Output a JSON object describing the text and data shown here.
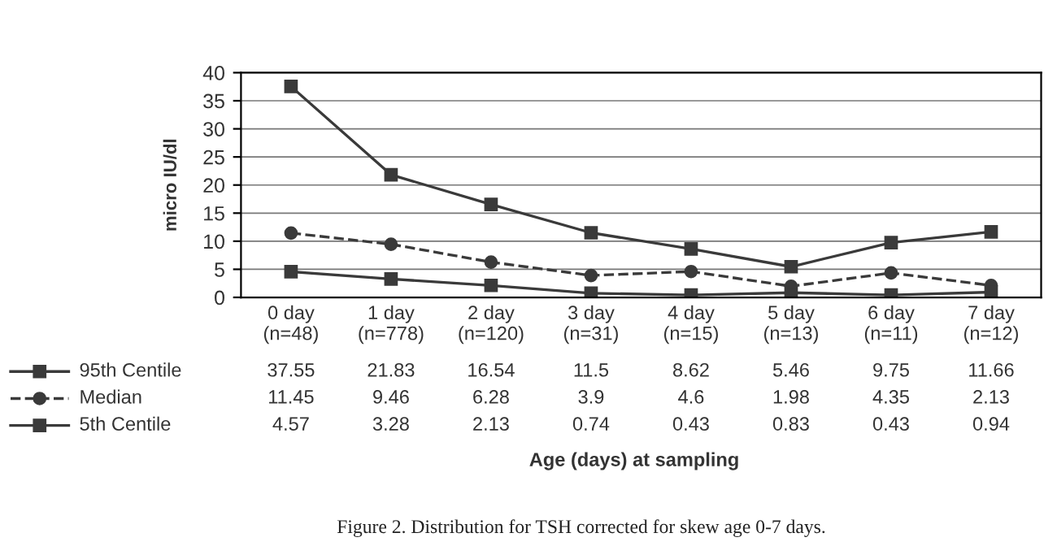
{
  "chart_data": {
    "type": "line",
    "categories": [
      "0 day\n(n=48)",
      "1 day\n(n=778)",
      "2 day\n(n=120)",
      "3 day\n(n=31)",
      "4 day\n(n=15)",
      "5 day\n(n=13)",
      "6 day\n(n=11)",
      "7 day\n(n=12)"
    ],
    "series": [
      {
        "name": "95th Centile",
        "color": "#3a3a3a",
        "marker": "square",
        "line_style": "solid",
        "values": [
          37.55,
          21.83,
          16.54,
          11.5,
          8.62,
          5.46,
          9.75,
          11.66
        ]
      },
      {
        "name": "Median",
        "color": "#3a3a3a",
        "marker": "circle",
        "line_style": "dashed",
        "values": [
          11.45,
          9.46,
          6.28,
          3.9,
          4.6,
          1.98,
          4.35,
          2.13
        ]
      },
      {
        "name": "5th Centile",
        "color": "#3a3a3a",
        "marker": "square",
        "line_style": "solid",
        "values": [
          4.57,
          3.28,
          2.13,
          0.74,
          0.43,
          0.83,
          0.43,
          0.94
        ]
      }
    ],
    "ylabel": "micro IU/dl",
    "ylim": [
      0,
      40
    ],
    "yticks": [
      0,
      5,
      10,
      15,
      20,
      25,
      30,
      35,
      40
    ],
    "grid": "y",
    "data_labels": true,
    "legend": "left",
    "annotations": [
      "Age (days) at sampling",
      "Figure 2. Distribution for TSH corrected for skew age 0-7 days."
    ]
  }
}
